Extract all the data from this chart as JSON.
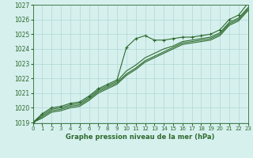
{
  "background_color": "#d6f0ee",
  "grid_color": "#b0d8d4",
  "line_color": "#2d6a2d",
  "title": "Graphe pression niveau de la mer (hPa)",
  "xlim": [
    0,
    23
  ],
  "ylim_min": 1019,
  "ylim_max": 1027,
  "yticks": [
    1019,
    1020,
    1021,
    1022,
    1023,
    1024,
    1025,
    1026,
    1027
  ],
  "xticks": [
    0,
    1,
    2,
    3,
    4,
    5,
    6,
    7,
    8,
    9,
    10,
    11,
    12,
    13,
    14,
    15,
    16,
    17,
    18,
    19,
    20,
    21,
    22,
    23
  ],
  "series": [
    [
      1019.0,
      1019.6,
      1020.0,
      1020.1,
      1020.3,
      1020.4,
      1020.8,
      1021.3,
      1021.6,
      1021.9,
      1024.1,
      1024.7,
      1024.9,
      1024.6,
      1024.6,
      1024.7,
      1024.8,
      1024.8,
      1024.9,
      1025.0,
      1025.3,
      1026.0,
      1026.3,
      1027.1
    ],
    [
      1019.0,
      1019.5,
      1019.9,
      1020.0,
      1020.2,
      1020.3,
      1020.7,
      1021.2,
      1021.5,
      1021.8,
      1022.5,
      1022.9,
      1023.4,
      1023.7,
      1024.0,
      1024.2,
      1024.5,
      1024.6,
      1024.7,
      1024.8,
      1025.1,
      1025.8,
      1026.1,
      1026.8
    ],
    [
      1019.0,
      1019.4,
      1019.8,
      1019.9,
      1020.1,
      1020.2,
      1020.6,
      1021.1,
      1021.4,
      1021.7,
      1022.3,
      1022.7,
      1023.2,
      1023.5,
      1023.8,
      1024.1,
      1024.4,
      1024.5,
      1024.6,
      1024.7,
      1025.0,
      1025.7,
      1026.0,
      1026.7
    ],
    [
      1019.0,
      1019.3,
      1019.7,
      1019.8,
      1020.0,
      1020.1,
      1020.5,
      1021.0,
      1021.3,
      1021.6,
      1022.2,
      1022.6,
      1023.1,
      1023.4,
      1023.7,
      1024.0,
      1024.3,
      1024.4,
      1024.5,
      1024.6,
      1024.9,
      1025.6,
      1025.9,
      1026.6
    ]
  ]
}
